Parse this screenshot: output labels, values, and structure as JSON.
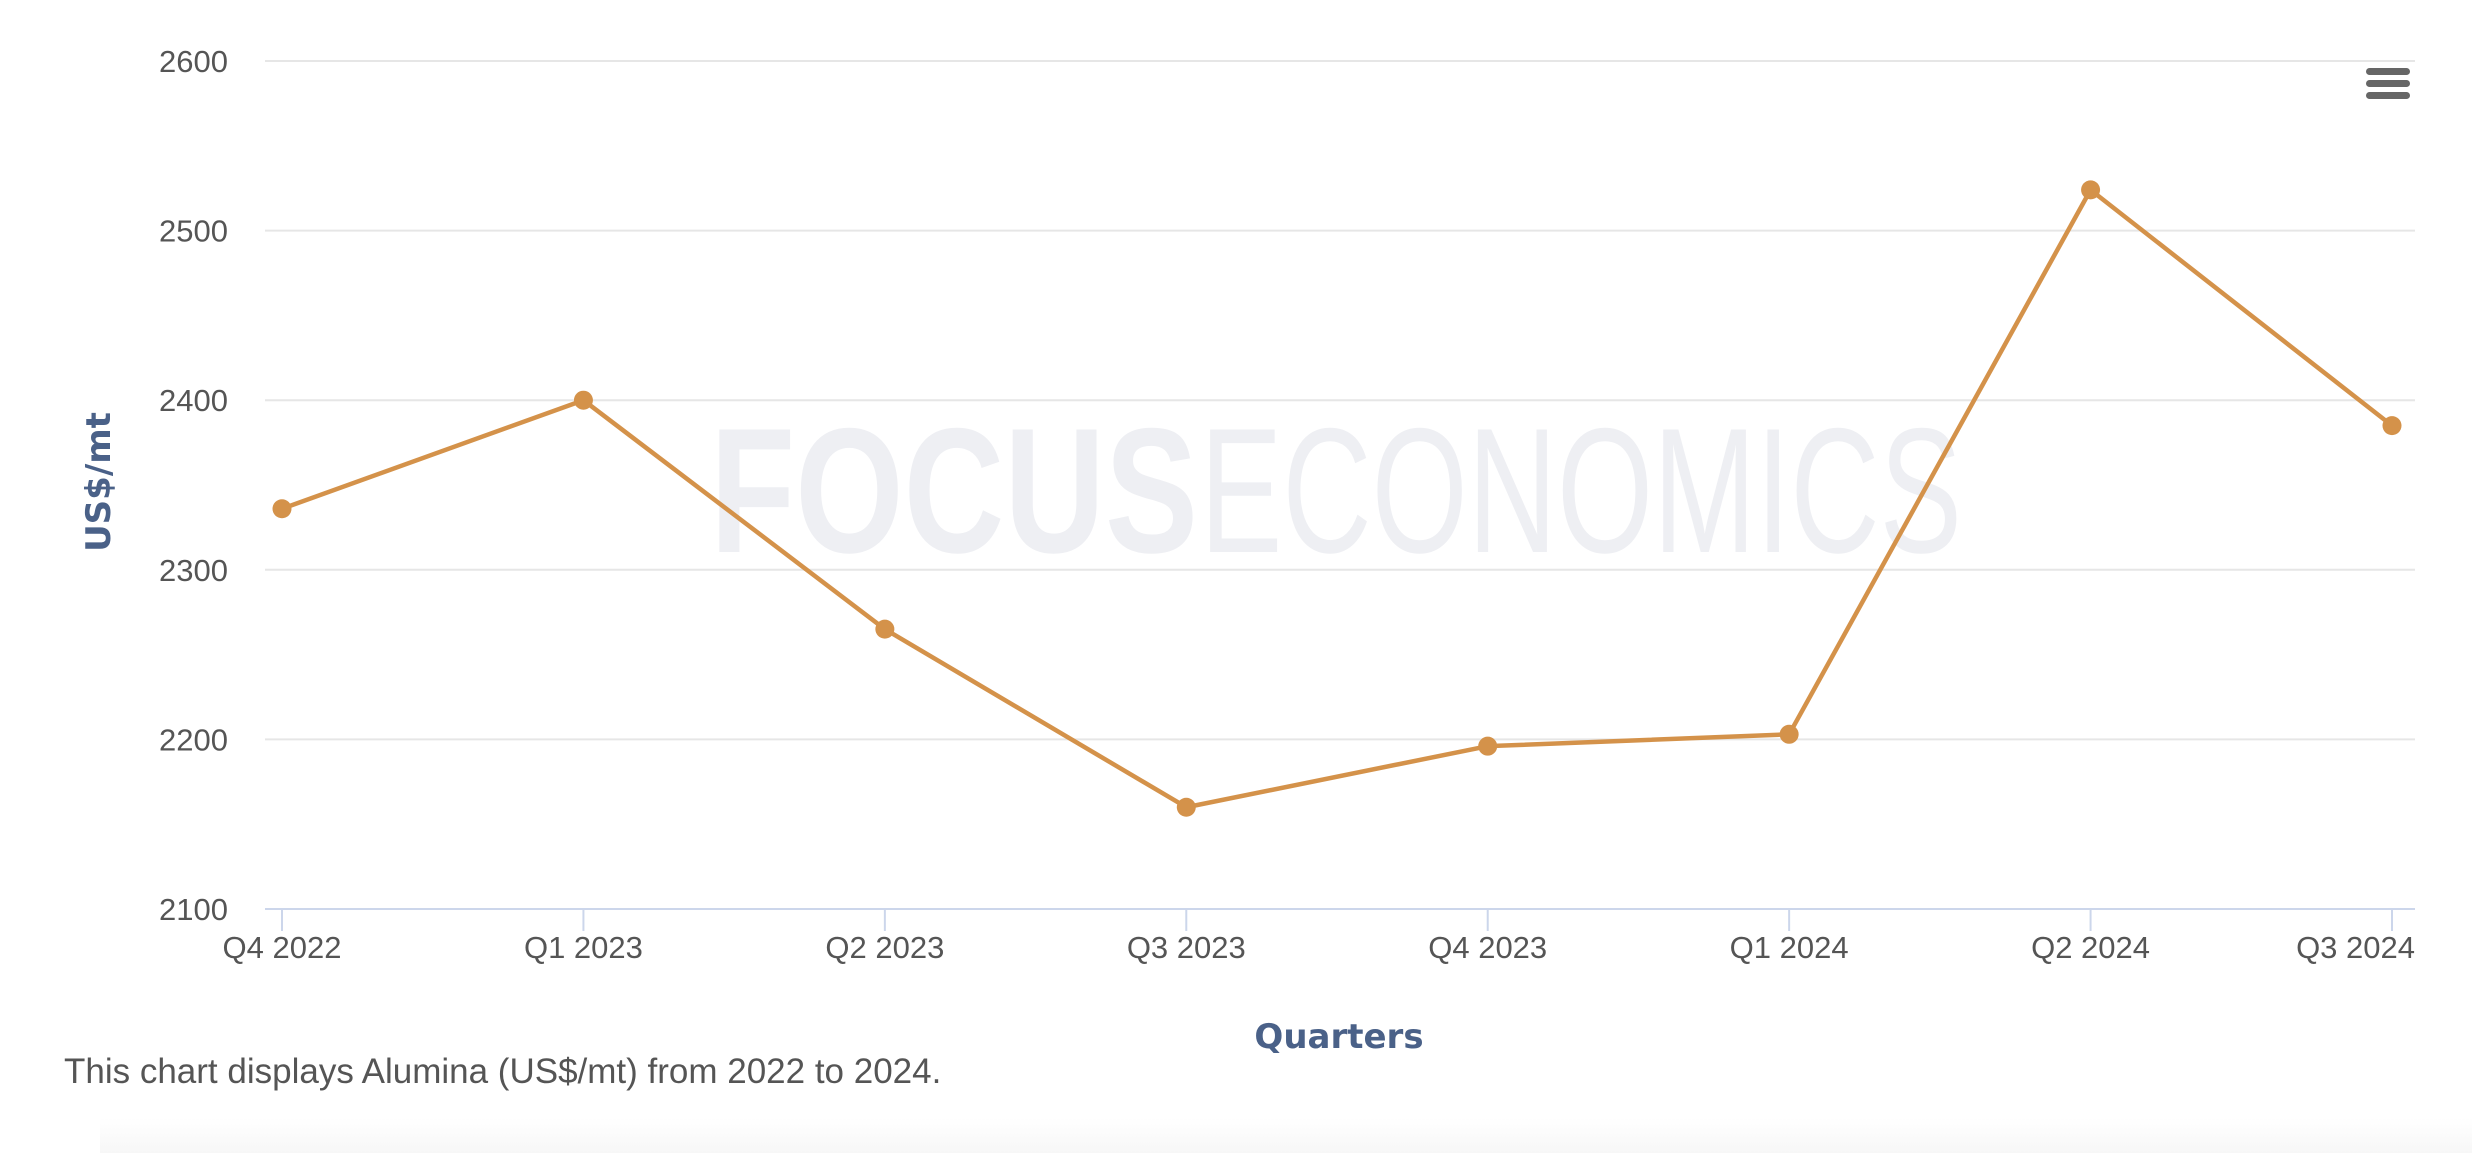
{
  "watermark": {
    "bold": "FOCUS",
    "light": "ECONOMICS"
  },
  "menu": {
    "icon": "hamburger-menu-icon"
  },
  "caption": "This chart displays Alumina (US$/mt) from 2022 to 2024.",
  "colors": {
    "series": "#d4924a",
    "grid": "#e6e6e6",
    "axis_line": "#ccd6eb",
    "axis_title": "#4a6188",
    "tick_text": "#555555",
    "menu_icon": "#666666",
    "watermark": "#eeeff3"
  },
  "chart_data": {
    "type": "line",
    "title": "",
    "xlabel": "Quarters",
    "ylabel": "US$/mt",
    "categories": [
      "Q4 2022",
      "Q1 2023",
      "Q2 2023",
      "Q3 2023",
      "Q4 2023",
      "Q1 2024",
      "Q2 2024",
      "Q3 2024"
    ],
    "series": [
      {
        "values": [
          2336,
          2400,
          2265,
          2160,
          2196,
          2203,
          2524,
          2385
        ]
      }
    ],
    "ylim": [
      2100,
      2600
    ],
    "yticks": [
      2100,
      2200,
      2300,
      2400,
      2500,
      2600
    ],
    "grid": true,
    "legend": "none"
  }
}
